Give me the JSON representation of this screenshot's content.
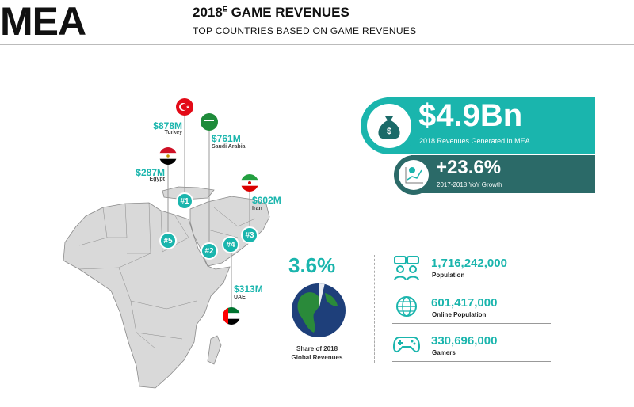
{
  "header": {
    "region": "MEA",
    "title_main": "2018",
    "title_sup": "E",
    "title_rest": " GAME REVENUES",
    "subtitle": "TOP COUNTRIES BASED ON GAME REVENUES"
  },
  "countries": [
    {
      "name": "Turkey",
      "amount": "$878M",
      "rank": "#1"
    },
    {
      "name": "Saudi Arabia",
      "amount": "$761M",
      "rank": "#2"
    },
    {
      "name": "Iran",
      "amount": "$602M",
      "rank": "#3"
    },
    {
      "name": "UAE",
      "amount": "$313M",
      "rank": "#4"
    },
    {
      "name": "Egypt",
      "amount": "$287M",
      "rank": "#5"
    }
  ],
  "revenue": {
    "value": "$4.9Bn",
    "label": "2018 Revenues Generated in MEA",
    "icon": "money-bag-icon"
  },
  "growth": {
    "value": "+23.6%",
    "label": "2017-2018 YoY Growth",
    "icon": "growth-chart-icon"
  },
  "share": {
    "value": "3.6%",
    "fraction": 0.036,
    "label_line1": "Share of 2018",
    "label_line2": "Global Revenues"
  },
  "stats": [
    {
      "value": "1,716,242,000",
      "label": "Population",
      "icon": "people-icon"
    },
    {
      "value": "601,417,000",
      "label": "Online Population",
      "icon": "globe-icon"
    },
    {
      "value": "330,696,000",
      "label": "Gamers",
      "icon": "gamepad-icon"
    }
  ],
  "colors": {
    "accent": "#1ab5ad",
    "dark_accent": "#2b6a68",
    "map_fill": "#d9d9d9"
  }
}
